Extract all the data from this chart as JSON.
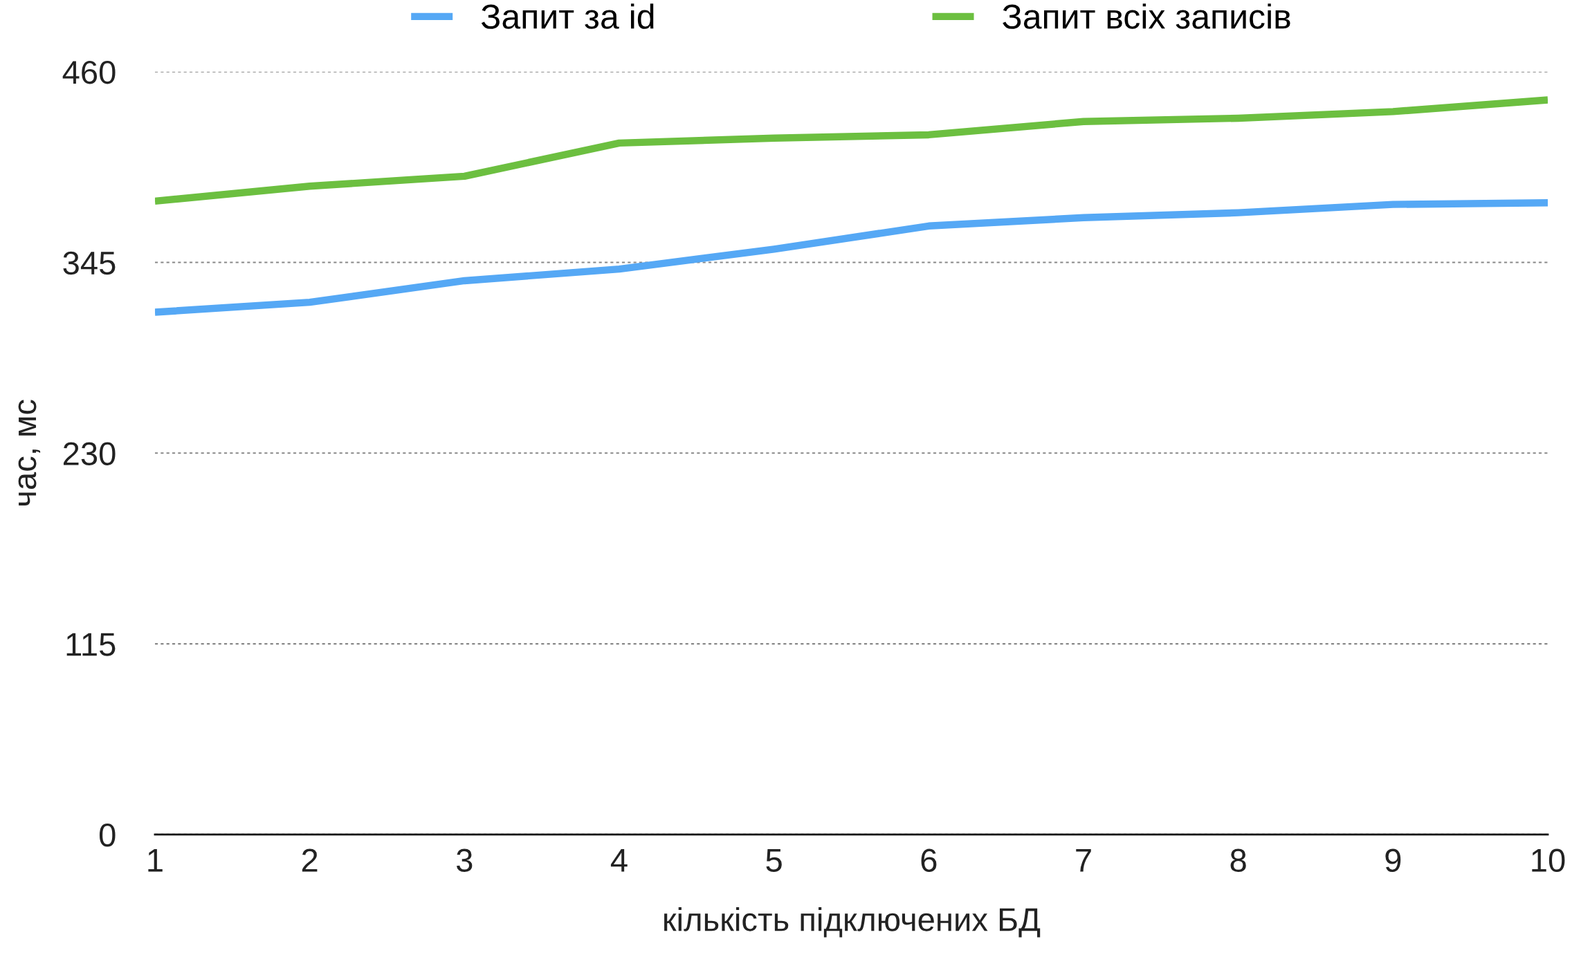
{
  "chart_data": {
    "type": "line",
    "xlabel": "кількість підключених БД",
    "ylabel": "час, мс",
    "x": [
      1,
      2,
      3,
      4,
      5,
      6,
      7,
      8,
      9,
      10
    ],
    "series": [
      {
        "name": "Запит за id",
        "color": "#55a8f5",
        "values": [
          315,
          321,
          334,
          341,
          353,
          367,
          372,
          375,
          380,
          381
        ]
      },
      {
        "name": "Запит всіх записів",
        "color": "#6cbf40",
        "values": [
          382,
          391,
          397,
          417,
          420,
          422,
          430,
          432,
          436,
          443
        ]
      }
    ],
    "xlim": [
      1,
      10
    ],
    "xticks": [
      1,
      2,
      3,
      4,
      5,
      6,
      7,
      8,
      9,
      10
    ],
    "ylim": [
      0,
      460
    ],
    "yticks": [
      0,
      115,
      230,
      345,
      460
    ],
    "grid": "y",
    "legend": "top",
    "marker": "none",
    "line_style": "solid"
  }
}
